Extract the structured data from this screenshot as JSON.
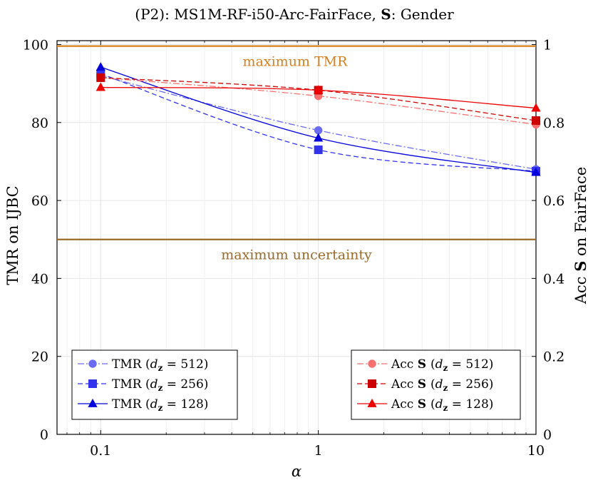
{
  "chart_data": {
    "type": "line",
    "title": "(P2):  MS1M-RF-i50-Arc-FairFace,  S: Gender",
    "title_parts": {
      "prefix": "(P2):  MS1M-RF-i50-Arc-FairFace,  ",
      "bold": "S",
      "suffix": ": Gender"
    },
    "xlabel": "α",
    "ylabel_left": "TMR on IJBC",
    "ylabel_right_parts": {
      "prefix": "Acc ",
      "bold": "S",
      "suffix": " on FairFace"
    },
    "x_scale": "log",
    "xlim": [
      0.063,
      10
    ],
    "ylim_left": [
      0,
      101
    ],
    "ylim_right": [
      0,
      1.01
    ],
    "x_ticks": [
      0.1,
      1,
      10
    ],
    "x_tick_labels": [
      "0.1",
      "1",
      "10"
    ],
    "y_left_ticks": [
      0,
      20,
      40,
      60,
      80,
      100
    ],
    "y_left_tick_labels": [
      "0",
      "20",
      "40",
      "60",
      "80",
      "100"
    ],
    "y_right_ticks": [
      0,
      0.2,
      0.4,
      0.6,
      0.8,
      1
    ],
    "y_right_tick_labels": [
      "0",
      "0.2",
      "0.4",
      "0.6",
      "0.8",
      "1"
    ],
    "x": [
      0.1,
      1,
      10
    ],
    "series": [
      {
        "name": "TMR (d_z = 512)",
        "label_main": "TMR",
        "dz": "512",
        "axis": "left",
        "values": [
          92,
          78,
          68
        ],
        "color": "#6b6bf5",
        "dash": "dashdot",
        "marker": "circle"
      },
      {
        "name": "TMR (d_z = 256)",
        "label_main": "TMR",
        "dz": "256",
        "axis": "left",
        "values": [
          92.5,
          73,
          67.5
        ],
        "color": "#3333ee",
        "dash": "dashed",
        "marker": "square"
      },
      {
        "name": "TMR (d_z = 128)",
        "label_main": "TMR",
        "dz": "128",
        "axis": "left",
        "values": [
          94.2,
          76,
          67.2
        ],
        "color": "#0000dd",
        "dash": "solid",
        "marker": "triangle"
      },
      {
        "name": "Acc S (d_z = 512)",
        "label_main": "Acc",
        "bold": "S",
        "dz": "512",
        "axis": "right",
        "values": [
          0.915,
          0.868,
          0.795
        ],
        "color": "#f87070",
        "dash": "dashdot",
        "marker": "circle"
      },
      {
        "name": "Acc S (d_z = 256)",
        "label_main": "Acc",
        "bold": "S",
        "dz": "256",
        "axis": "right",
        "values": [
          0.915,
          0.883,
          0.805
        ],
        "color": "#cc0000",
        "dash": "dashed",
        "marker": "square"
      },
      {
        "name": "Acc S (d_z = 128)",
        "label_main": "Acc",
        "bold": "S",
        "dz": "128",
        "axis": "right",
        "values": [
          0.89,
          0.883,
          0.837
        ],
        "color": "#ee0000",
        "dash": "solid",
        "marker": "triangle"
      }
    ],
    "reference_lines": [
      {
        "label": "maximum TMR",
        "value_left": 99.6,
        "color": "#d5801f"
      },
      {
        "label": "maximum uncertainty",
        "value_left": 50,
        "color": "#9a6a2b"
      }
    ],
    "grid": true,
    "legend_left": "bottom-left",
    "legend_right": "bottom-right"
  }
}
